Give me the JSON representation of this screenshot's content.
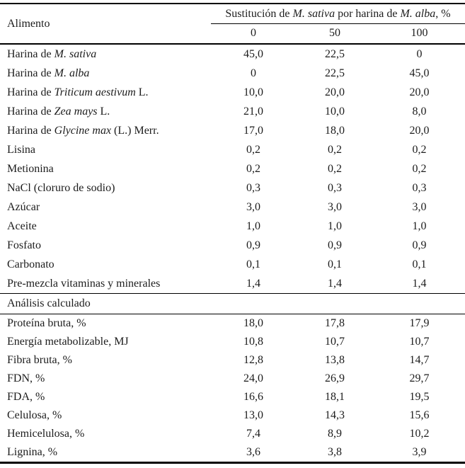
{
  "table": {
    "colors": {
      "text": "#1c1c1c",
      "rule": "#000000",
      "background": "#ffffff"
    },
    "header": {
      "food_col_label": "Alimento",
      "span_header": [
        {
          "t": "Sustitución de ",
          "i": 0
        },
        {
          "t": "M. sativa",
          "i": 1
        },
        {
          "t": " por harina de ",
          "i": 0
        },
        {
          "t": "M. alba",
          "i": 1
        },
        {
          "t": ", %",
          "i": 0
        }
      ],
      "sub_headers": [
        "0",
        "50",
        "100"
      ]
    },
    "sections": [
      {
        "title": "",
        "rows": [
          {
            "label": [
              {
                "t": "Harina de ",
                "i": 0
              },
              {
                "t": "M. sativa",
                "i": 1
              }
            ],
            "values": [
              "45,0",
              "22,5",
              "0"
            ]
          },
          {
            "label": [
              {
                "t": "Harina de ",
                "i": 0
              },
              {
                "t": "M. alba",
                "i": 1
              }
            ],
            "values": [
              "0",
              "22,5",
              "45,0"
            ]
          },
          {
            "label": [
              {
                "t": "Harina de ",
                "i": 0
              },
              {
                "t": "Triticum aestivum",
                "i": 1
              },
              {
                "t": " L.",
                "i": 0
              }
            ],
            "values": [
              "10,0",
              "20,0",
              "20,0"
            ]
          },
          {
            "label": [
              {
                "t": "Harina de ",
                "i": 0
              },
              {
                "t": "Zea mays",
                "i": 1
              },
              {
                "t": " L.",
                "i": 0
              }
            ],
            "values": [
              "21,0",
              "10,0",
              "8,0"
            ]
          },
          {
            "label": [
              {
                "t": "Harina de ",
                "i": 0
              },
              {
                "t": "Glycine max",
                "i": 1
              },
              {
                "t": " (L.) Merr.",
                "i": 0
              }
            ],
            "values": [
              "17,0",
              "18,0",
              "20,0"
            ]
          },
          {
            "label": [
              {
                "t": "Lisina",
                "i": 0
              }
            ],
            "values": [
              "0,2",
              "0,2",
              "0,2"
            ]
          },
          {
            "label": [
              {
                "t": "Metionina",
                "i": 0
              }
            ],
            "values": [
              "0,2",
              "0,2",
              "0,2"
            ]
          },
          {
            "label": [
              {
                "t": "NaCl (cloruro de sodio)",
                "i": 0
              }
            ],
            "values": [
              "0,3",
              "0,3",
              "0,3"
            ]
          },
          {
            "label": [
              {
                "t": "Azúcar",
                "i": 0
              }
            ],
            "values": [
              "3,0",
              "3,0",
              "3,0"
            ]
          },
          {
            "label": [
              {
                "t": "Aceite",
                "i": 0
              }
            ],
            "values": [
              "1,0",
              "1,0",
              "1,0"
            ]
          },
          {
            "label": [
              {
                "t": "Fosfato",
                "i": 0
              }
            ],
            "values": [
              "0,9",
              "0,9",
              "0,9"
            ]
          },
          {
            "label": [
              {
                "t": "Carbonato",
                "i": 0
              }
            ],
            "values": [
              "0,1",
              "0,1",
              "0,1"
            ]
          },
          {
            "label": [
              {
                "t": "Pre-mezcla vitaminas y minerales",
                "i": 0
              }
            ],
            "values": [
              "1,4",
              "1,4",
              "1,4"
            ]
          }
        ]
      },
      {
        "title": "Análisis calculado",
        "rows": [
          {
            "label": [
              {
                "t": "Proteína bruta, %",
                "i": 0
              }
            ],
            "values": [
              "18,0",
              "17,8",
              "17,9"
            ]
          },
          {
            "label": [
              {
                "t": "Energía metabolizable, MJ",
                "i": 0
              }
            ],
            "values": [
              "10,8",
              "10,7",
              "10,7"
            ]
          },
          {
            "label": [
              {
                "t": "Fibra bruta, %",
                "i": 0
              }
            ],
            "values": [
              "12,8",
              "13,8",
              "14,7"
            ]
          },
          {
            "label": [
              {
                "t": "FDN, %",
                "i": 0
              }
            ],
            "values": [
              "24,0",
              "26,9",
              "29,7"
            ]
          },
          {
            "label": [
              {
                "t": "FDA, %",
                "i": 0
              }
            ],
            "values": [
              "16,6",
              "18,1",
              "19,5"
            ]
          },
          {
            "label": [
              {
                "t": "Celulosa, %",
                "i": 0
              }
            ],
            "values": [
              "13,0",
              "14,3",
              "15,6"
            ]
          },
          {
            "label": [
              {
                "t": "Hemicelulosa, %",
                "i": 0
              }
            ],
            "values": [
              "7,4",
              "8,9",
              "10,2"
            ]
          },
          {
            "label": [
              {
                "t": "Lignina, %",
                "i": 0
              }
            ],
            "values": [
              "3,6",
              "3,8",
              "3,9"
            ]
          }
        ]
      }
    ]
  }
}
